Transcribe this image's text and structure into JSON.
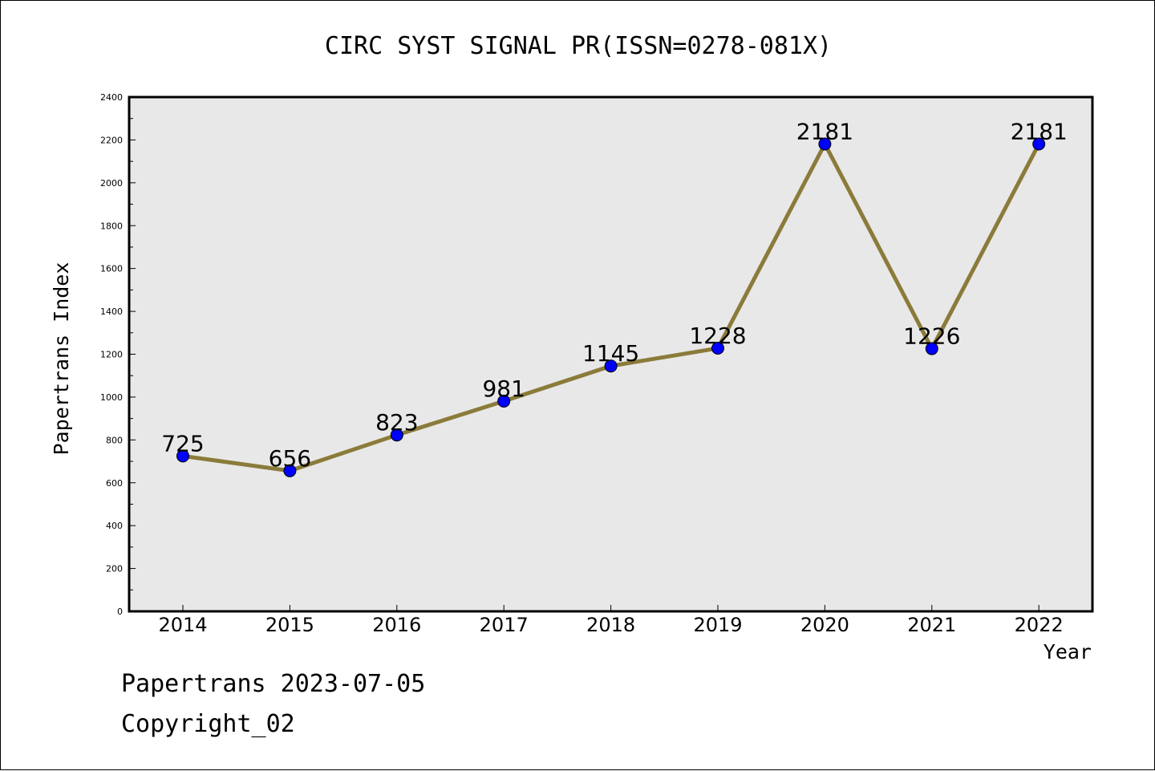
{
  "chart_data": {
    "type": "line",
    "title": "CIRC SYST SIGNAL PR(ISSN=0278-081X)",
    "xlabel": "Year",
    "ylabel": "Papertrans Index",
    "categories": [
      "2014",
      "2015",
      "2016",
      "2017",
      "2018",
      "2019",
      "2020",
      "2021",
      "2022"
    ],
    "series": [
      {
        "values": [
          725,
          656,
          823,
          981,
          1145,
          1228,
          2181,
          1226,
          2181
        ],
        "data_labels": [
          "725",
          "656",
          "823",
          "981",
          "1145",
          "1228",
          "2181",
          "1226",
          "2181"
        ]
      }
    ],
    "ylim": [
      0,
      2400
    ],
    "yticks": [
      "0",
      "200",
      "400",
      "600",
      "800",
      "1000",
      "1200",
      "1400",
      "1600",
      "1800",
      "2000",
      "2200",
      "2400"
    ],
    "grid": false,
    "colors": {
      "line": "#8B7B3A",
      "marker": "#0000FF",
      "plot_background": "#E8E8E8"
    }
  },
  "footer": {
    "line1": "Papertrans 2023-07-05",
    "line2": "Copyright_02"
  }
}
